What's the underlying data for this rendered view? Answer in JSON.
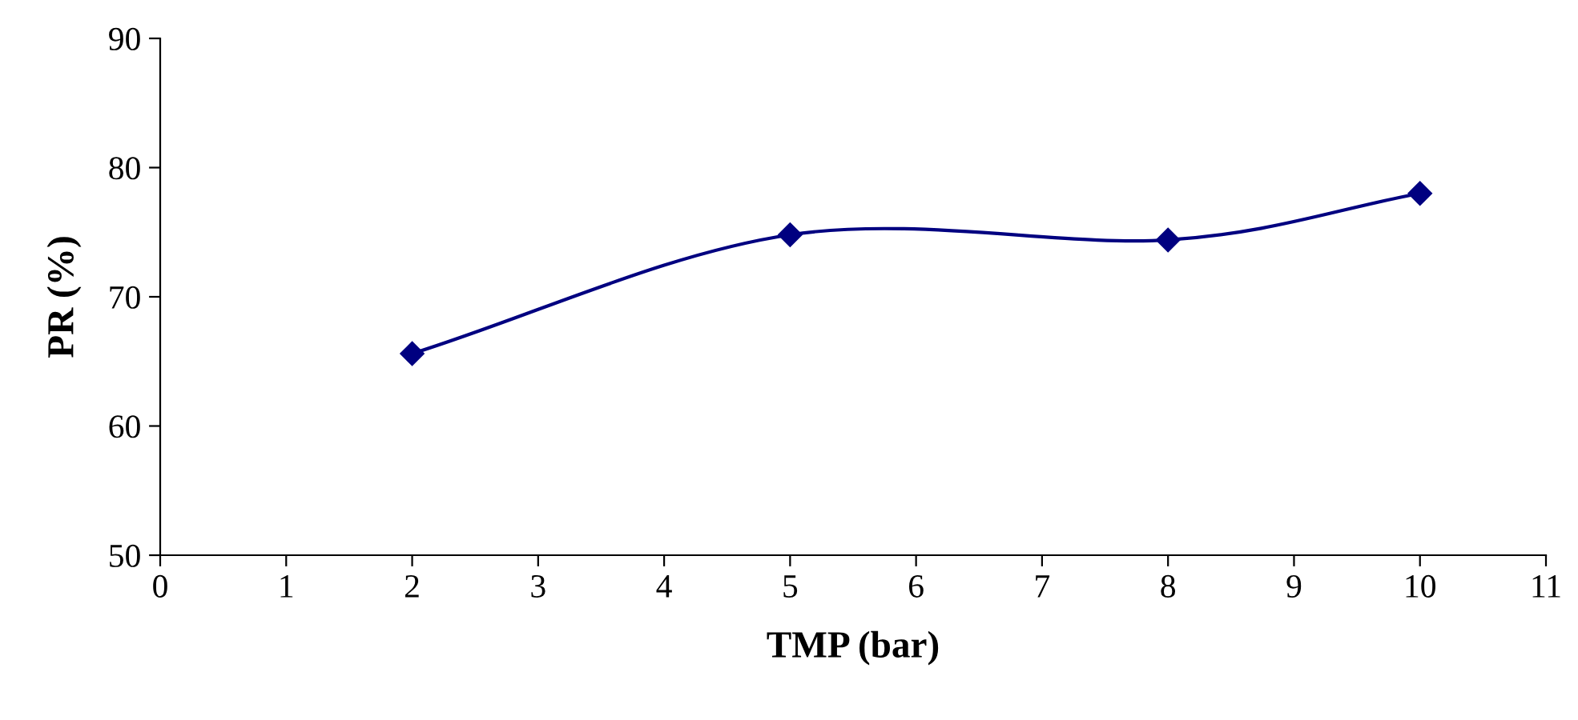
{
  "chart_data": {
    "type": "line",
    "xlabel": "TMP (bar)",
    "ylabel": "PR (%)",
    "x": [
      2,
      5,
      8,
      10
    ],
    "series": [
      {
        "color": "#000080",
        "values": [
          65.6,
          74.8,
          74.4,
          78.0
        ]
      }
    ],
    "xlim": [
      0,
      11
    ],
    "xticks": [
      0,
      1,
      2,
      3,
      4,
      5,
      6,
      7,
      8,
      9,
      10,
      11
    ],
    "ylim": [
      50,
      90
    ],
    "yticks": [
      50,
      60,
      70,
      80,
      90
    ],
    "marker": "diamond",
    "line_style": "solid",
    "grid": false,
    "legend": false
  }
}
